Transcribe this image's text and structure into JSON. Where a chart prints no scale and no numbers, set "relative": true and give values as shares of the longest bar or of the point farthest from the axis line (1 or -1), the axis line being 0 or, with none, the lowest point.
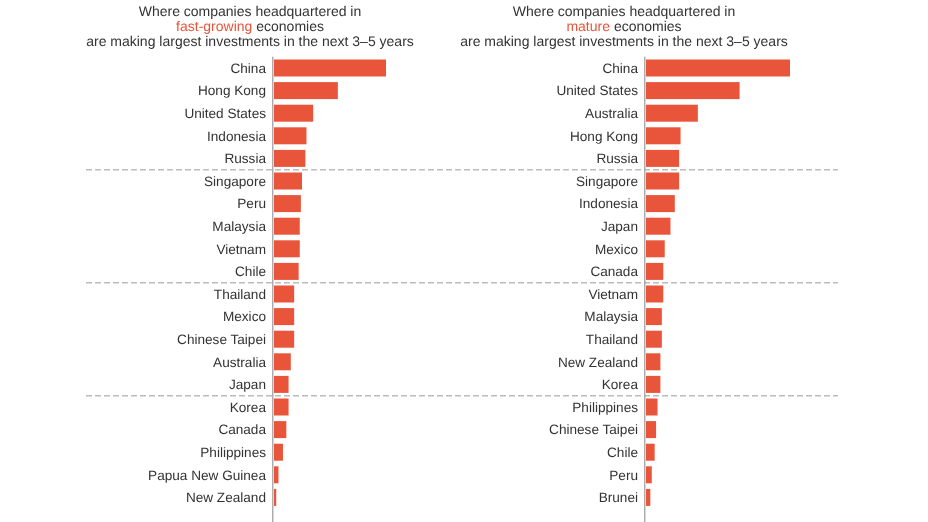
{
  "chart_data": [
    {
      "type": "bar",
      "orientation": "horizontal",
      "relative": true,
      "title": "Where companies headquartered in\nfast-growing economies\nare making largest investments in the next 3–5 years",
      "categories": [
        "China",
        "Hong Kong",
        "United States",
        "Indonesia",
        "Russia",
        "Singapore",
        "Peru",
        "Malaysia",
        "Vietnam",
        "Chile",
        "Thailand",
        "Mexico",
        "Chinese Taipei",
        "Australia",
        "Japan",
        "Korea",
        "Canada",
        "Philippines",
        "Papua New Guinea",
        "New Zealand"
      ],
      "values": [
        1,
        0.57,
        0.35,
        0.29,
        0.28,
        0.25,
        0.24,
        0.23,
        0.23,
        0.22,
        0.18,
        0.18,
        0.18,
        0.15,
        0.13,
        0.13,
        0.11,
        0.08,
        0.04,
        0.02
      ],
      "color": "#e8553a"
    },
    {
      "type": "bar",
      "orientation": "horizontal",
      "relative": true,
      "title": "Where companies headquartered in\nmature economies\nare making largest investments in the next 3–5 years",
      "categories": [
        "China",
        "United States",
        "Australia",
        "Hong Kong",
        "Russia",
        "Singapore",
        "Indonesia",
        "Japan",
        "Mexico",
        "Canada",
        "Vietnam",
        "Malaysia",
        "Thailand",
        "New Zealand",
        "Korea",
        "Philippines",
        "Chinese Taipei",
        "Chile",
        "Peru",
        "Brunei"
      ],
      "values": [
        1,
        0.65,
        0.36,
        0.24,
        0.23,
        0.23,
        0.2,
        0.17,
        0.13,
        0.12,
        0.12,
        0.11,
        0.11,
        0.1,
        0.1,
        0.08,
        0.07,
        0.06,
        0.04,
        0.03
      ],
      "color": "#e8553a"
    }
  ]
}
